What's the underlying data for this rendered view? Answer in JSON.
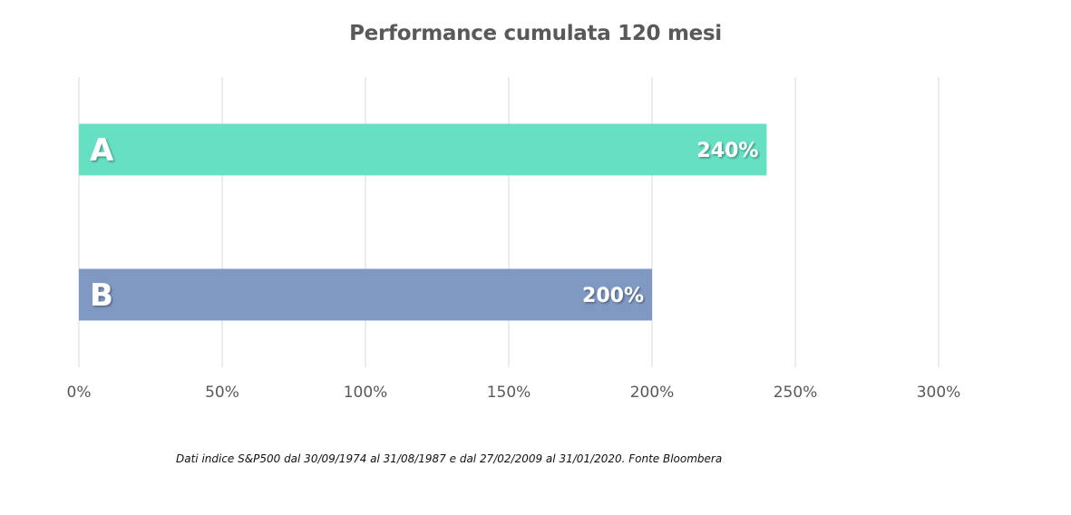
{
  "chart_data": {
    "type": "bar",
    "orientation": "horizontal",
    "title": "Performance cumulata 120 mesi",
    "categories": [
      "A",
      "B"
    ],
    "values": [
      240,
      200
    ],
    "value_labels": [
      "240%",
      "200%"
    ],
    "colors": [
      "#66e0c3",
      "#7f99c3"
    ],
    "xlim": [
      0,
      300
    ],
    "x_ticks": [
      0,
      50,
      100,
      150,
      200,
      250,
      300
    ],
    "x_tick_labels": [
      "0%",
      "50%",
      "100%",
      "150%",
      "200%",
      "250%",
      "300%"
    ],
    "grid": true,
    "legend": "none"
  },
  "footnote": "Dati indice S&P500 dal 30/09/1974 al 31/08/1987 e dal 27/02/2009 al 31/01/2020. Fonte Bloombera"
}
